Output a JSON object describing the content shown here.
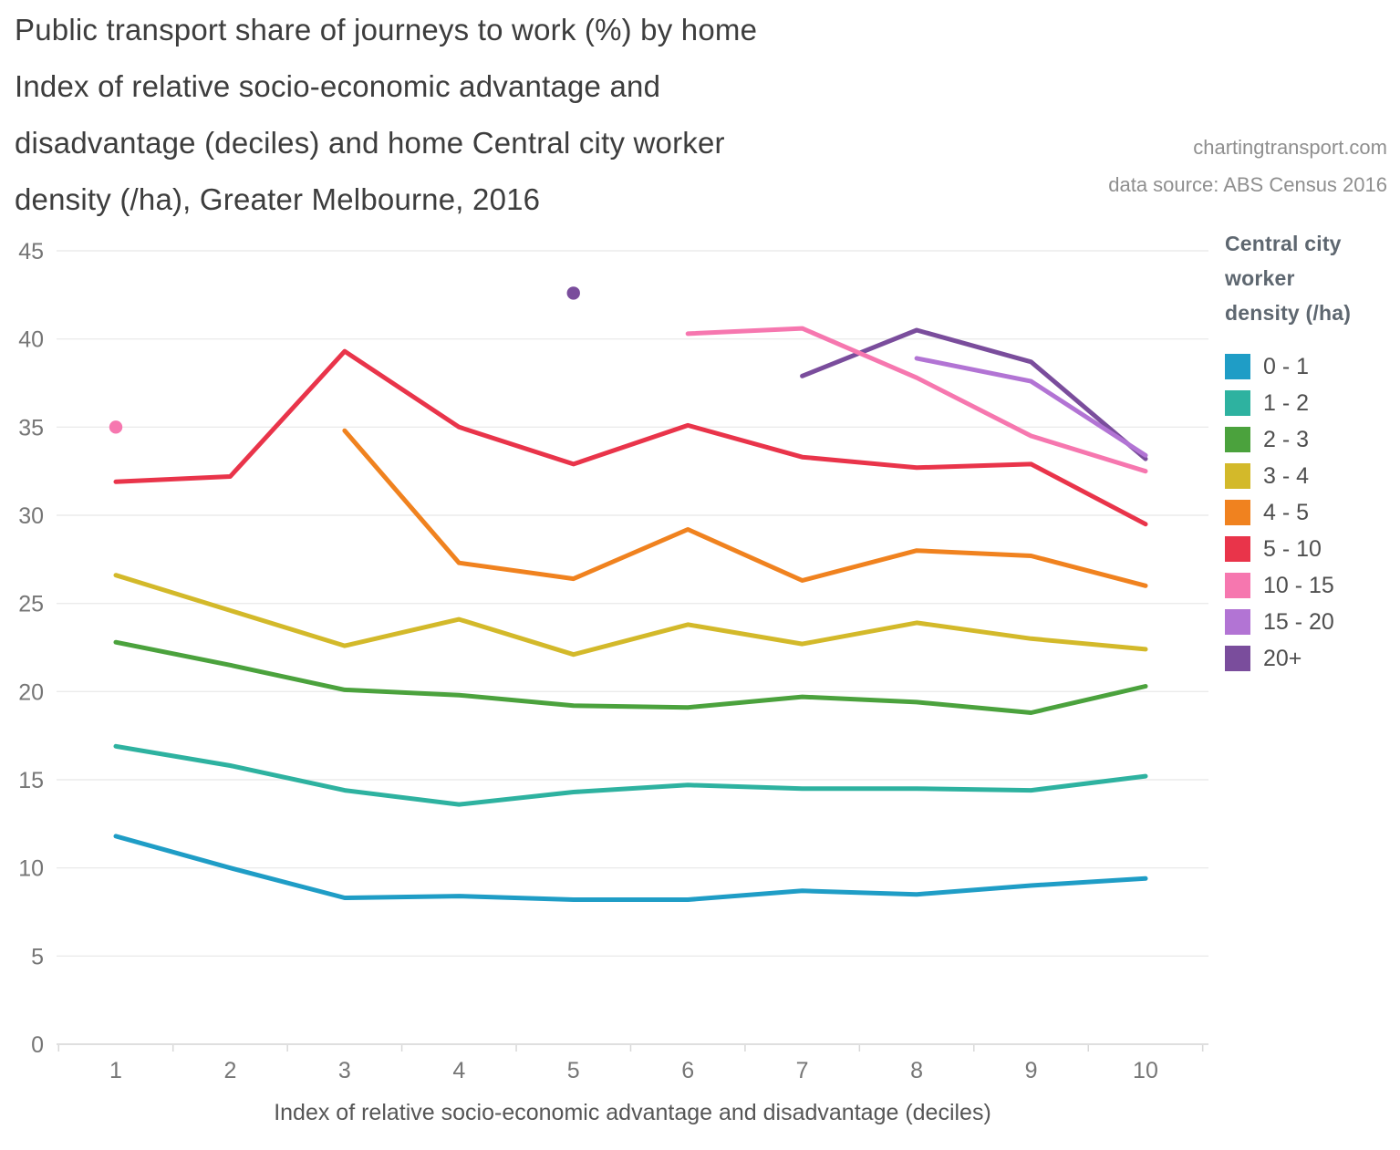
{
  "title": {
    "lines": [
      "Public transport share of journeys to work (%) by home",
      "Index of relative socio-economic advantage and",
      "disadvantage (deciles) and home Central city worker",
      "density (/ha), Greater Melbourne, 2016"
    ]
  },
  "attribution": {
    "line1": "chartingtransport.com",
    "line2": "data source: ABS Census 2016"
  },
  "legend": {
    "title_lines": [
      "Central city",
      "worker",
      "density (/ha)"
    ]
  },
  "chart_data": {
    "type": "line",
    "x": [
      1,
      2,
      3,
      4,
      5,
      6,
      7,
      8,
      9,
      10
    ],
    "xlabel": "Index of relative socio-economic advantage and disadvantage (deciles)",
    "ylabel": "",
    "ylim": [
      0,
      45
    ],
    "ytick_step": 5,
    "grid": true,
    "legend_position": "right",
    "legend_title": "Central city worker density (/ha)",
    "series": [
      {
        "name": "0 - 1",
        "color": "#1f9dc6",
        "values": [
          11.8,
          10.0,
          8.3,
          8.4,
          8.2,
          8.2,
          8.7,
          8.5,
          9.0,
          9.4
        ]
      },
      {
        "name": "1 - 2",
        "color": "#2eb2a0",
        "values": [
          16.9,
          15.8,
          14.4,
          13.6,
          14.3,
          14.7,
          14.5,
          14.5,
          14.4,
          15.2
        ]
      },
      {
        "name": "2 - 3",
        "color": "#4ba23d",
        "values": [
          22.8,
          21.5,
          20.1,
          19.8,
          19.2,
          19.1,
          19.7,
          19.4,
          18.8,
          20.3
        ]
      },
      {
        "name": "3 - 4",
        "color": "#d3b92a",
        "values": [
          26.6,
          24.6,
          22.6,
          24.1,
          22.1,
          23.8,
          22.7,
          23.9,
          23.0,
          22.4
        ]
      },
      {
        "name": "4 - 5",
        "color": "#f0821f",
        "values": [
          null,
          null,
          34.8,
          27.3,
          26.4,
          29.2,
          26.3,
          28.0,
          27.7,
          26.0
        ]
      },
      {
        "name": "5 - 10",
        "color": "#e9344a",
        "values": [
          31.9,
          32.2,
          39.3,
          35.0,
          32.9,
          35.1,
          33.3,
          32.7,
          32.9,
          29.5
        ]
      },
      {
        "name": "10 - 15",
        "color": "#f677af",
        "values": [
          35.0,
          null,
          null,
          null,
          null,
          40.3,
          40.6,
          37.8,
          34.5,
          32.5
        ]
      },
      {
        "name": "15 - 20",
        "color": "#b274d4",
        "values": [
          null,
          null,
          null,
          null,
          null,
          null,
          null,
          38.9,
          37.6,
          33.4
        ]
      },
      {
        "name": "20+",
        "color": "#7a4d9c",
        "values": [
          null,
          null,
          null,
          null,
          42.6,
          null,
          37.9,
          40.5,
          38.7,
          33.2
        ]
      }
    ]
  }
}
